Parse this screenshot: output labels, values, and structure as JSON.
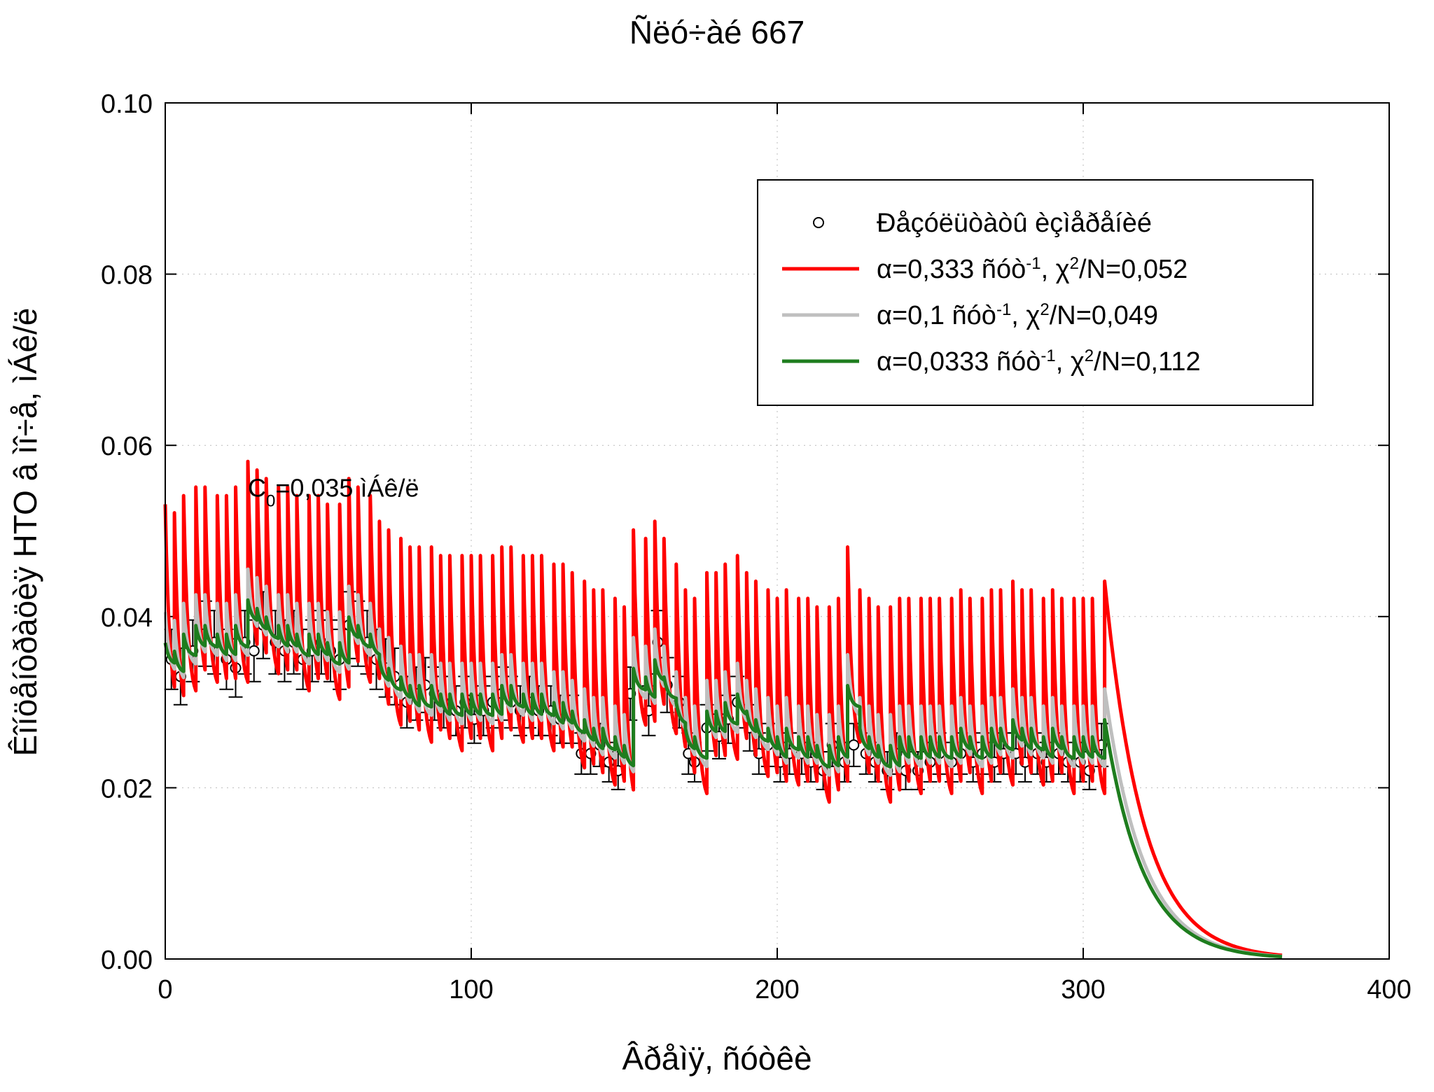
{
  "chart_data": {
    "type": "line",
    "title": "Ñëó÷àé 667",
    "xlabel": "Âðåìÿ, ñóòêè",
    "ylabel": "Êîíöåíòðàöèÿ HTO â ìî÷å, ìÁê/ë",
    "xlim": [
      0,
      400
    ],
    "ylim": [
      0,
      0.1
    ],
    "x_ticks": [
      0,
      100,
      200,
      300,
      400
    ],
    "y_ticks": [
      0.0,
      0.02,
      0.04,
      0.06,
      0.08,
      0.1
    ],
    "x_tick_labels": [
      "0",
      "100",
      "200",
      "300",
      "400"
    ],
    "y_tick_labels": [
      "0.00",
      "0.02",
      "0.04",
      "0.06",
      "0.08",
      "0.10"
    ],
    "grid": true,
    "legend_position": "top-right",
    "annotation": {
      "base": "C",
      "sub": "0",
      "rest": "=0,035 ìÁê/ë",
      "x": 27,
      "y": 0.054
    },
    "observations": {
      "name": "Ðåçóëüòàòû èçìåðåíèé",
      "marker": "open-circle",
      "error_rel": 0.1,
      "x": [
        2,
        5,
        9,
        13,
        16,
        20,
        23,
        26,
        29,
        32,
        36,
        39,
        42,
        45,
        48,
        51,
        54,
        57,
        60,
        63,
        66,
        69,
        72,
        75,
        79,
        82,
        85,
        88,
        91,
        95,
        98,
        101,
        104,
        107,
        110,
        113,
        116,
        119,
        122,
        126,
        129,
        133,
        136,
        139,
        142,
        145,
        148,
        152,
        158,
        161,
        164,
        168,
        171,
        173,
        177,
        181,
        184,
        187,
        191,
        194,
        197,
        201,
        204,
        208,
        211,
        215,
        218,
        222,
        225,
        229,
        232,
        236,
        239,
        242,
        246,
        250,
        253,
        257,
        260,
        264,
        267,
        271,
        274,
        278,
        281,
        285,
        288,
        292,
        295,
        299,
        302,
        306
      ],
      "y": [
        0.035,
        0.033,
        0.036,
        0.038,
        0.037,
        0.035,
        0.034,
        0.037,
        0.036,
        0.039,
        0.037,
        0.036,
        0.037,
        0.035,
        0.036,
        0.037,
        0.036,
        0.035,
        0.039,
        0.038,
        0.037,
        0.035,
        0.034,
        0.033,
        0.03,
        0.031,
        0.032,
        0.031,
        0.03,
        0.029,
        0.03,
        0.028,
        0.029,
        0.03,
        0.031,
        0.03,
        0.029,
        0.03,
        0.029,
        0.029,
        0.028,
        0.028,
        0.024,
        0.024,
        0.025,
        0.023,
        0.022,
        0.031,
        0.029,
        0.037,
        0.032,
        0.03,
        0.024,
        0.023,
        0.027,
        0.026,
        0.028,
        0.03,
        0.027,
        0.024,
        0.025,
        0.023,
        0.024,
        0.024,
        0.023,
        0.022,
        0.025,
        0.023,
        0.025,
        0.024,
        0.023,
        0.022,
        0.024,
        0.022,
        0.022,
        0.023,
        0.024,
        0.023,
        0.024,
        0.023,
        0.024,
        0.023,
        0.024,
        0.024,
        0.023,
        0.024,
        0.023,
        0.024,
        0.023,
        0.023,
        0.022,
        0.025
      ]
    },
    "series": [
      {
        "name": "α=0,333 ñóò⁻¹, χ²/N=0,052",
        "alpha_text": "α=0,333 ñóò",
        "sup1": "-1",
        "chi": ", χ",
        "sup2": "2",
        "tail": "/N=0,052",
        "color": "#ff0000",
        "alpha": 0.333
      },
      {
        "name": "α=0,1 ñóò⁻¹, χ²/N=0,049",
        "alpha_text": "α=0,1 ñóò",
        "sup1": "-1",
        "chi": ", χ",
        "sup2": "2",
        "tail": "/N=0,049",
        "color": "#bfbfbf",
        "alpha": 0.1
      },
      {
        "name": "α=0,0333 ñóò⁻¹, χ²/N=0,112",
        "alpha_text": "α=0,0333 ñóò",
        "sup1": "-1",
        "chi": ", χ",
        "sup2": "2",
        "tail": "/N=0,112",
        "color": "#1e7d1e",
        "alpha": 0.0333
      }
    ],
    "intake_days": [
      0,
      3,
      6,
      10,
      13,
      17,
      20,
      23,
      27,
      30,
      33,
      37,
      40,
      43,
      47,
      50,
      53,
      57,
      60,
      63,
      67,
      70,
      73,
      77,
      80,
      83,
      87,
      90,
      93,
      97,
      100,
      103,
      107,
      110,
      113,
      117,
      120,
      123,
      127,
      130,
      133,
      137,
      140,
      143,
      147,
      150,
      153,
      157,
      160,
      163,
      167,
      170,
      173,
      177,
      180,
      183,
      187,
      190,
      193,
      197,
      200,
      203,
      207,
      210,
      213,
      217,
      220,
      223,
      227,
      230,
      233,
      237,
      240,
      243,
      247,
      250,
      253,
      257,
      260,
      263,
      267,
      270,
      273,
      277,
      280,
      283,
      287,
      290,
      293,
      297,
      300,
      303,
      307
    ],
    "intake_level": [
      0.035,
      0.034,
      0.036,
      0.037,
      0.037,
      0.036,
      0.036,
      0.037,
      0.04,
      0.039,
      0.038,
      0.037,
      0.037,
      0.036,
      0.036,
      0.036,
      0.035,
      0.035,
      0.038,
      0.037,
      0.036,
      0.033,
      0.032,
      0.031,
      0.03,
      0.03,
      0.03,
      0.029,
      0.029,
      0.029,
      0.029,
      0.029,
      0.029,
      0.03,
      0.03,
      0.029,
      0.029,
      0.029,
      0.028,
      0.028,
      0.027,
      0.026,
      0.025,
      0.025,
      0.024,
      0.023,
      0.032,
      0.031,
      0.033,
      0.031,
      0.028,
      0.025,
      0.024,
      0.027,
      0.027,
      0.028,
      0.029,
      0.027,
      0.026,
      0.025,
      0.024,
      0.025,
      0.024,
      0.024,
      0.023,
      0.023,
      0.024,
      0.03,
      0.025,
      0.024,
      0.023,
      0.023,
      0.024,
      0.024,
      0.024,
      0.024,
      0.024,
      0.024,
      0.025,
      0.024,
      0.024,
      0.025,
      0.025,
      0.026,
      0.025,
      0.025,
      0.024,
      0.025,
      0.024,
      0.024,
      0.024,
      0.024,
      0.026
    ],
    "decay_end_x": 365
  }
}
